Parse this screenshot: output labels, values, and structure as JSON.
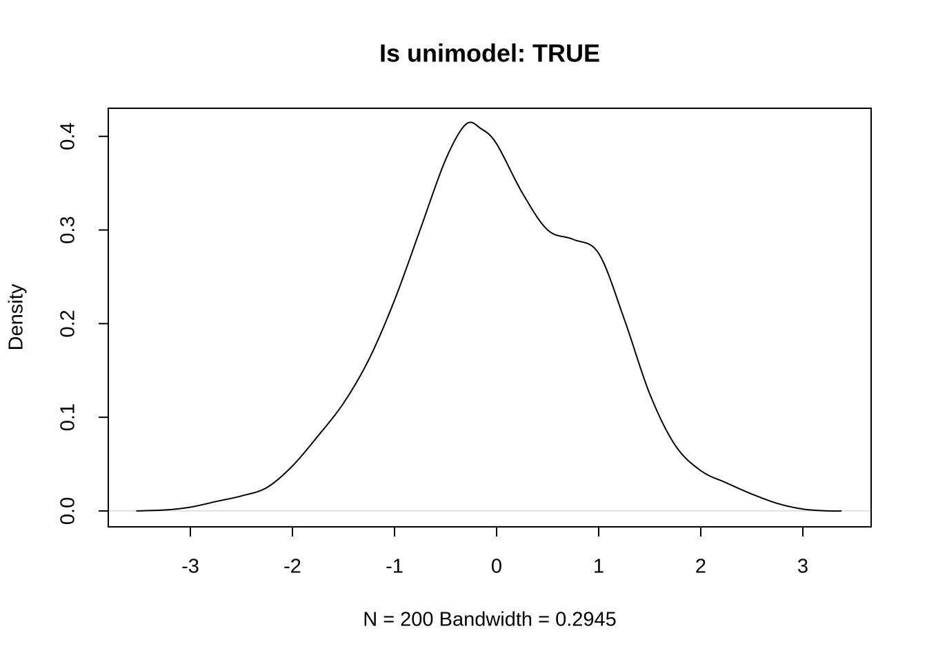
{
  "chart_data": {
    "type": "line",
    "title": "Is unimodel: TRUE",
    "x_label": "N = 200   Bandwidth = 0.2945",
    "y_label": "Density",
    "x": [
      -3.53,
      -3.25,
      -3.0,
      -2.75,
      -2.5,
      -2.25,
      -2.0,
      -1.75,
      -1.5,
      -1.25,
      -1.0,
      -0.75,
      -0.5,
      -0.3,
      -0.15,
      0.0,
      0.25,
      0.5,
      0.75,
      1.0,
      1.25,
      1.5,
      1.75,
      2.0,
      2.25,
      2.5,
      2.75,
      3.0,
      3.25,
      3.38
    ],
    "series": [
      {
        "color": "#000000",
        "values": [
          0.0,
          0.001,
          0.004,
          0.01,
          0.016,
          0.025,
          0.048,
          0.08,
          0.115,
          0.162,
          0.225,
          0.3,
          0.375,
          0.413,
          0.408,
          0.392,
          0.34,
          0.3,
          0.29,
          0.275,
          0.205,
          0.125,
          0.07,
          0.043,
          0.03,
          0.018,
          0.008,
          0.002,
          0.0,
          0.0
        ]
      }
    ],
    "xlim": [
      -3.804,
      3.669
    ],
    "ylim": [
      -0.017,
      0.43
    ],
    "xticks": [
      -3,
      -2,
      -1,
      0,
      1,
      2,
      3
    ],
    "yticks": [
      {
        "value": 0,
        "label": "0.0"
      },
      0.1,
      0.2,
      0.3,
      0.4
    ],
    "zero_line": true,
    "zero_line_color": "#d9d9d9"
  }
}
